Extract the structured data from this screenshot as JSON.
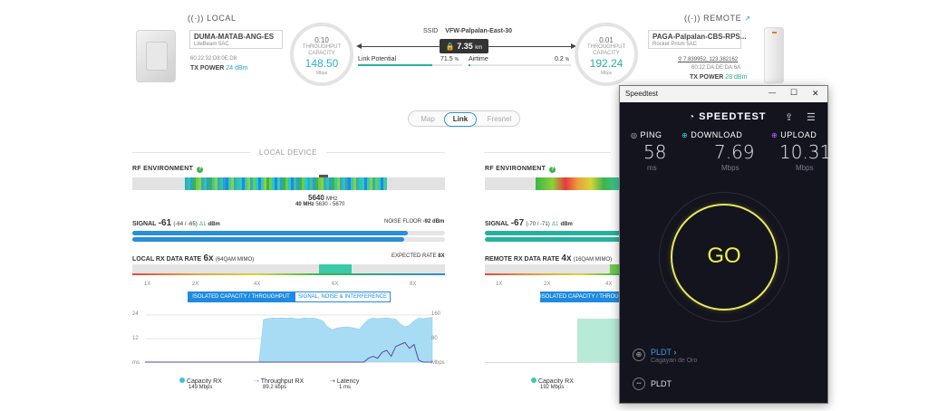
{
  "local": {
    "label": "LOCAL",
    "name": "DUMA-MATAB-ANG-ES",
    "model": "LiteBeam 5AC",
    "mac": "60:22:32:D8:0E:D8",
    "tx_power_label": "TX POWER",
    "tx_power_value": "24 dBm",
    "ring_value": "0.10",
    "ring_title1": "THROUGHPUT",
    "ring_title2": "CAPACITY",
    "ring_big": "148.50",
    "ring_unit": "Mbps"
  },
  "remote": {
    "label": "REMOTE",
    "name": "PAGA-Palpalan-CBS-RPS...",
    "model": "Rocket Prism 5AC",
    "coords": "7.839952, 123.382162",
    "mac": "60:22:DA:DE:DA:6A",
    "tx_power_label": "TX POWER",
    "tx_power_value": "28 dBm",
    "ring_value": "0.01",
    "ring_title1": "THROUGHPUT",
    "ring_title2": "CAPACITY",
    "ring_big": "192.24",
    "ring_unit": "Mbps"
  },
  "link": {
    "ssid_label": "SSID",
    "ssid": "VFW-Palpalan-East-30",
    "distance": "7.35",
    "distance_unit": "km",
    "potential_label": "Link Potential",
    "potential_value": "71.5",
    "airtime_label": "Airtime",
    "airtime_value": "0.2",
    "percent": "%",
    "potential_fraction": 0.715,
    "airtime_fraction": 0.02
  },
  "tabs": [
    "Map",
    "Link",
    "Fresnel"
  ],
  "sections": {
    "local_device": "LOCAL DEVICE"
  },
  "rf": {
    "label": "RF ENVIRONMENT",
    "freq": "5640",
    "freq_unit": "MHz",
    "width": "40 MHz",
    "range": "5630 - 5670"
  },
  "signal": {
    "label": "SIGNAL",
    "value": "-61",
    "detail": "(-64 / -65)",
    "delta": "Δ1",
    "unit": "dBm",
    "noise_label": "NOISE FLOOR",
    "noise_value": "-92 dBm",
    "chain0": 0.88,
    "chain1": 0.87
  },
  "remote_signal": {
    "label": "SIGNAL",
    "value": "-67",
    "detail": "(-70 / -71)",
    "delta": "Δ1",
    "unit": "dBm"
  },
  "local_rate": {
    "label": "LOCAL RX DATA RATE",
    "value": "6x",
    "detail": "(64QAM MIMO)",
    "expected_label": "EXPECTED RATE",
    "expected_value": "8X",
    "scale": [
      "1X",
      "2X",
      "4X",
      "6X",
      "8X"
    ]
  },
  "remote_rate": {
    "label": "REMOTE RX DATA RATE",
    "value": "4x",
    "detail": "(16QAM MIMO)",
    "scale": [
      "1X",
      "2X",
      "4X"
    ]
  },
  "buttons": {
    "isolated": "ISOLATED CAPACITY / THROUGHPUT",
    "signal_noise": "SIGNAL, NOISE & INTERFERENCE",
    "isolated_short": "ISOLATED CAPACITY / THROUGHPUT"
  },
  "chart_data": [
    {
      "type": "area",
      "y_left_ticks": [
        "24",
        "12",
        "ms"
      ],
      "y_right_ticks": [
        "160",
        "80",
        "Mbps"
      ],
      "ylim_left": [
        0,
        24
      ],
      "ylim_right": [
        0,
        160
      ],
      "series": [
        {
          "name": "Capacity RX",
          "color": "#a8dcf5",
          "values": [
            0,
            0,
            0,
            0,
            0,
            0,
            0,
            0,
            0,
            0,
            0,
            0,
            0,
            0,
            0,
            0,
            0,
            0,
            0,
            0,
            0,
            0,
            0,
            0,
            0,
            0,
            145,
            148,
            150,
            149,
            150,
            149,
            150,
            148,
            147,
            150,
            149,
            150,
            146,
            140,
            120,
            110,
            115,
            118,
            120,
            118,
            115,
            112,
            130,
            145,
            150,
            148,
            149,
            150,
            148,
            146,
            130,
            120,
            125,
            140,
            150,
            148,
            150,
            152
          ]
        },
        {
          "name": "Throughput RX",
          "color": "#a8dcf5",
          "values": [
            0,
            0,
            0,
            0,
            0,
            0,
            0,
            0,
            0,
            0,
            0,
            0,
            0,
            0,
            0,
            0,
            0,
            0,
            0,
            0,
            0,
            0,
            0,
            0,
            0,
            0,
            0,
            0,
            0,
            0,
            0,
            0,
            0,
            0,
            0,
            0,
            0,
            0,
            0,
            0,
            0,
            0,
            0,
            0,
            0,
            0,
            0,
            0,
            0,
            0,
            0,
            0,
            0,
            0,
            0,
            0,
            0,
            0,
            0,
            0,
            0,
            0,
            0,
            0
          ]
        },
        {
          "name": "Latency",
          "color": "#5a4b9c",
          "values": [
            0,
            0,
            0,
            0,
            0,
            0,
            0,
            0,
            0,
            0,
            0,
            0,
            0,
            0,
            0,
            0,
            0,
            0,
            0,
            0,
            0,
            0,
            0,
            0,
            0,
            0,
            0,
            0,
            0,
            0,
            0,
            0,
            0,
            0,
            0,
            0,
            0,
            0,
            0,
            0,
            0,
            0,
            0,
            0,
            0,
            0,
            0,
            0,
            0,
            2,
            3,
            2,
            5,
            6,
            3,
            8,
            9,
            10,
            7,
            9,
            1,
            0,
            0,
            0
          ]
        }
      ],
      "legend": [
        {
          "name": "Capacity RX",
          "value": "149 Mbps"
        },
        {
          "name": "Throughput RX",
          "value": "89.2 kbps"
        },
        {
          "name": "Latency",
          "value": "1 ms"
        }
      ]
    },
    {
      "type": "area",
      "legend": [
        {
          "name": "Capacity RX",
          "value": "192 Mbps"
        }
      ]
    }
  ],
  "speedtest": {
    "window_title": "Speedtest",
    "brand": "SPEEDTEST",
    "ping_label": "PING",
    "ping_value": "58",
    "ping_unit": "ms",
    "download_label": "DOWNLOAD",
    "download_value": "7.69",
    "download_unit": "Mbps",
    "upload_label": "UPLOAD",
    "upload_value": "10.31",
    "upload_unit": "Mbps",
    "go": "GO",
    "isp": "PLDT",
    "isp_location": "Cagayan de Oro",
    "server": "PLDT",
    "minimize": "—",
    "maximize": "☐",
    "close": "✕"
  }
}
